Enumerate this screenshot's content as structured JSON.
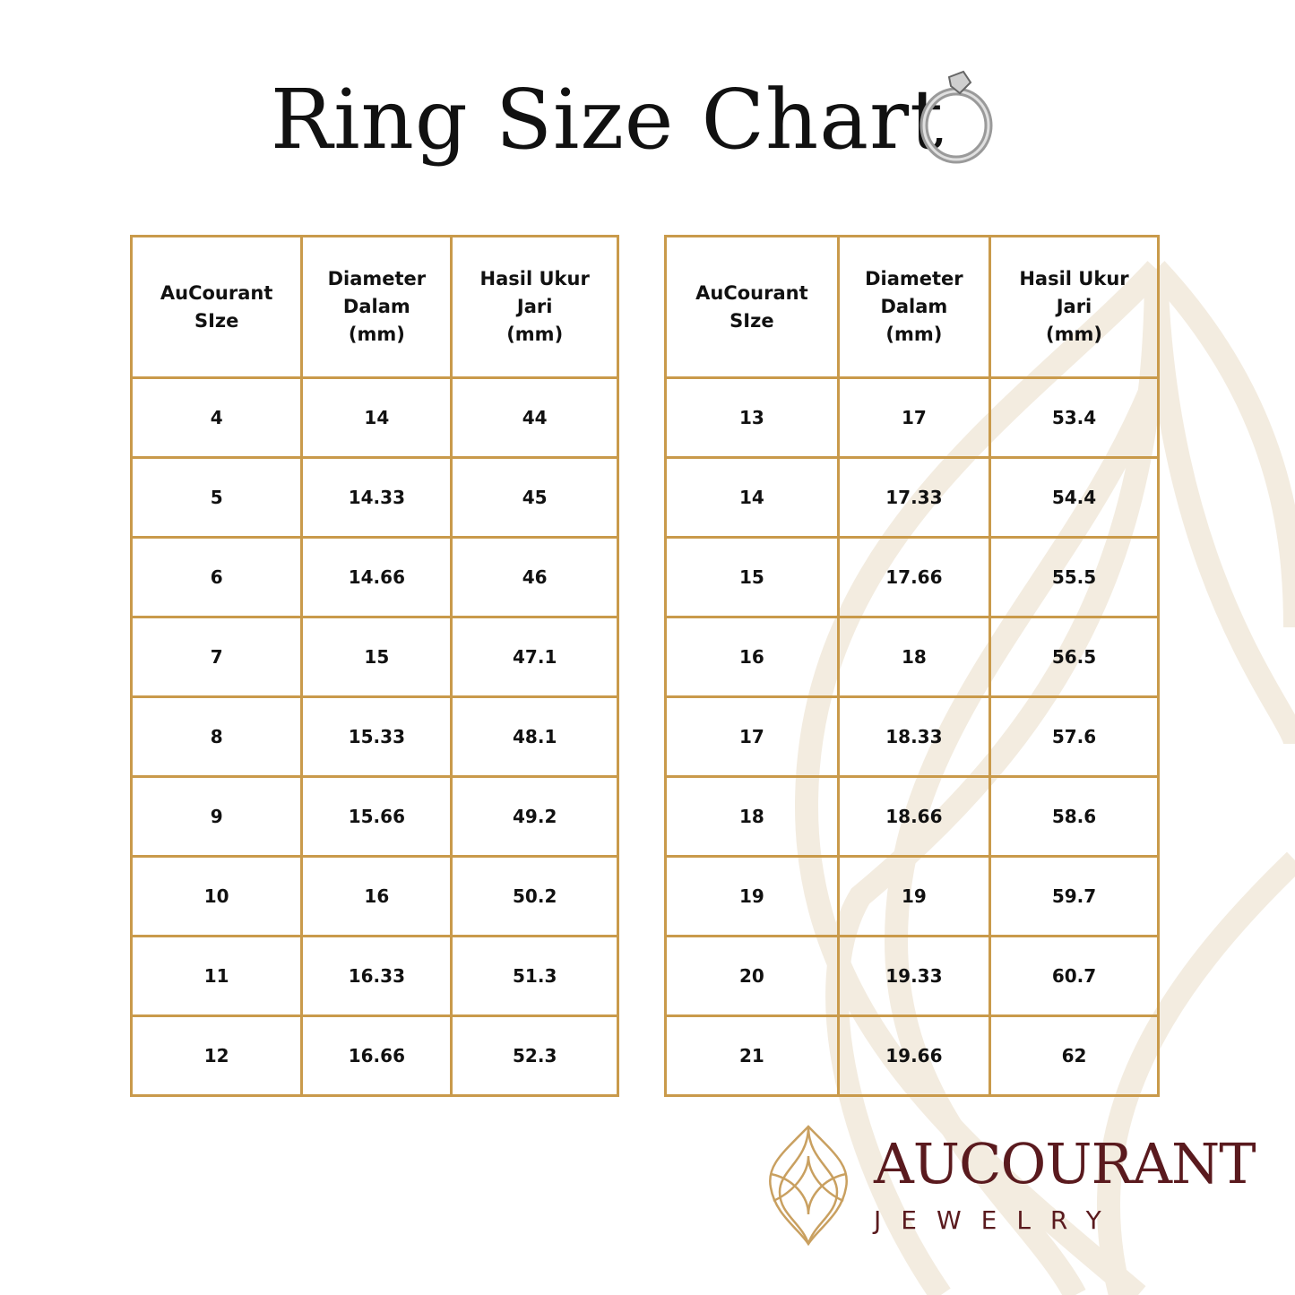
{
  "title": "Ring Size Chart",
  "colors": {
    "border": "#c99a4b",
    "brand": "#5a1a1e",
    "logo_gold": "#c9a060",
    "watermark": "#f3ece0"
  },
  "tables": [
    {
      "headers": [
        "AuCourant\nSIze",
        "Diameter\nDalam\n(mm)",
        "Hasil Ukur\nJari\n(mm)"
      ],
      "rows": [
        [
          "4",
          "14",
          "44"
        ],
        [
          "5",
          "14.33",
          "45"
        ],
        [
          "6",
          "14.66",
          "46"
        ],
        [
          "7",
          "15",
          "47.1"
        ],
        [
          "8",
          "15.33",
          "48.1"
        ],
        [
          "9",
          "15.66",
          "49.2"
        ],
        [
          "10",
          "16",
          "50.2"
        ],
        [
          "11",
          "16.33",
          "51.3"
        ],
        [
          "12",
          "16.66",
          "52.3"
        ]
      ]
    },
    {
      "headers": [
        "AuCourant\nSIze",
        "Diameter\nDalam\n(mm)",
        "Hasil Ukur\nJari\n(mm)"
      ],
      "rows": [
        [
          "13",
          "17",
          "53.4"
        ],
        [
          "14",
          "17.33",
          "54.4"
        ],
        [
          "15",
          "17.66",
          "55.5"
        ],
        [
          "16",
          "18",
          "56.5"
        ],
        [
          "17",
          "18.33",
          "57.6"
        ],
        [
          "18",
          "18.66",
          "58.6"
        ],
        [
          "19",
          "19",
          "59.7"
        ],
        [
          "20",
          "19.33",
          "60.7"
        ],
        [
          "21",
          "19.66",
          "62"
        ]
      ]
    }
  ],
  "brand": {
    "name": "AUCOURANT",
    "sub": "JEWELRY"
  }
}
